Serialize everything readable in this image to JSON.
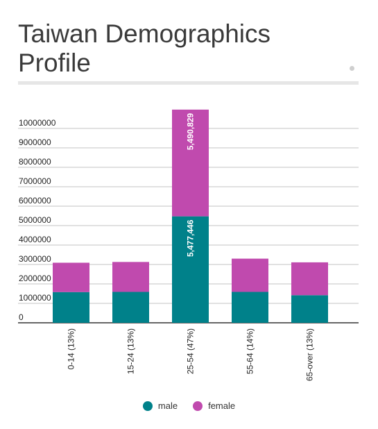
{
  "title": "Taiwan Demographics Profile",
  "colors": {
    "male": "#00818a",
    "female": "#c04aae",
    "axis": "#333333",
    "grid": "#888888"
  },
  "chart_data": {
    "type": "bar",
    "stacked": true,
    "categories": [
      "0-14 (13%)",
      "15-24 (13%)",
      "25-54 (47%)",
      "55-64 (14%)",
      "65-over (13%)"
    ],
    "series": [
      {
        "name": "male",
        "values": [
          1580000,
          1590000,
          5477446,
          1590000,
          1420000
        ]
      },
      {
        "name": "female",
        "values": [
          1510000,
          1540000,
          5490829,
          1710000,
          1690000
        ]
      }
    ],
    "data_labels": [
      {
        "category": "25-54 (47%)",
        "series": "male",
        "text": "5,477,446"
      },
      {
        "category": "25-54 (47%)",
        "series": "female",
        "text": "5,490,829"
      }
    ],
    "ytick_labels": [
      "0",
      "1000000",
      "2000000",
      "3000000",
      "4000000",
      "5000000",
      "6000000",
      "7000000",
      "8000000",
      "9000000",
      "10000000"
    ],
    "ylim": [
      0,
      11000000
    ],
    "xlabel": "",
    "ylabel": "",
    "grid": true,
    "legend_position": "bottom"
  }
}
